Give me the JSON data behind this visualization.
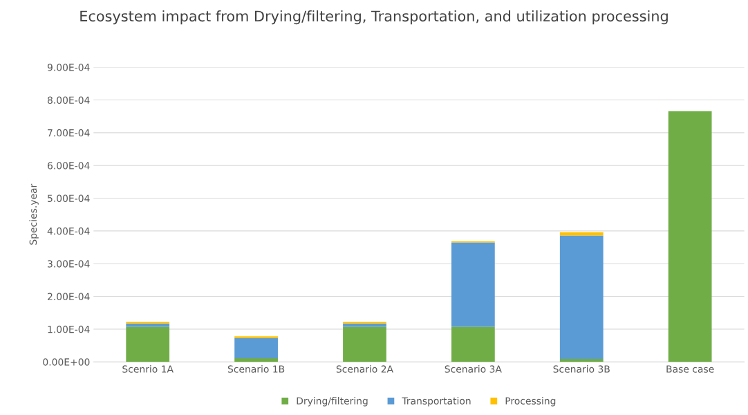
{
  "chart_data": {
    "type": "bar",
    "stacked": true,
    "title": "Ecosystem impact from Drying/filtering, Transportation, and utilization processing",
    "ylabel": "Species.year",
    "categories": [
      "Scenrio 1A",
      "Scenario 1B",
      "Scenario 2A",
      "Scenario 3A",
      "Scenario 3B",
      "Base case"
    ],
    "series": [
      {
        "name": "Drying/filtering",
        "color": "#70ad47",
        "values": [
          0.000107,
          1.1e-05,
          0.000107,
          0.000107,
          9e-06,
          0.000766
        ]
      },
      {
        "name": "Transportation",
        "color": "#5b9bd5",
        "values": [
          1e-05,
          6.2e-05,
          1e-05,
          0.000258,
          0.000377,
          0
        ]
      },
      {
        "name": "Processing",
        "color": "#ffc000",
        "values": [
          5e-06,
          5e-06,
          5e-06,
          3e-06,
          1e-05,
          0
        ]
      }
    ],
    "ylim": [
      0,
      0.0009
    ],
    "yticks": [
      {
        "value": 0,
        "label": "0.00E+00"
      },
      {
        "value": 0.0001,
        "label": "1.00E-04"
      },
      {
        "value": 0.0002,
        "label": "2.00E-04"
      },
      {
        "value": 0.0003,
        "label": "3.00E-04"
      },
      {
        "value": 0.0004,
        "label": "4.00E-04"
      },
      {
        "value": 0.0005,
        "label": "5.00E-04"
      },
      {
        "value": 0.0006,
        "label": "6.00E-04"
      },
      {
        "value": 0.0007,
        "label": "7.00E-04"
      },
      {
        "value": 0.0008,
        "label": "8.00E-04"
      },
      {
        "value": 0.0009,
        "label": "9.00E-04"
      }
    ],
    "grid": "y",
    "legend": "bottom"
  }
}
